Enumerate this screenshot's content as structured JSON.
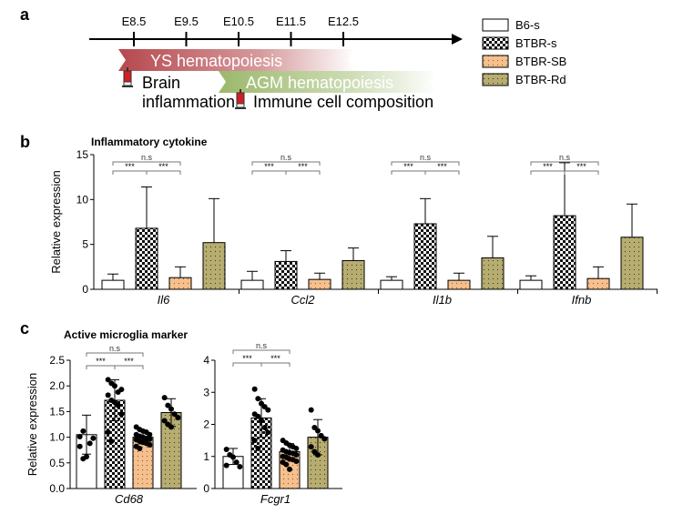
{
  "panels": {
    "a": "a",
    "b": "b",
    "c": "c"
  },
  "timeline": {
    "ticks": [
      "E8.5",
      "E9.5",
      "E10.5",
      "E11.5",
      "E12.5"
    ],
    "ys_label": "YS hematopoiesis",
    "agm_label": "AGM hematopoiesis",
    "brain_label_1": "Brain",
    "brain_label_2": "inflammation",
    "immune_label": "Immune cell composition"
  },
  "legend": [
    {
      "name": "B6-s",
      "pattern": "white"
    },
    {
      "name": "BTBR-s",
      "pattern": "checker"
    },
    {
      "name": "BTBR-SB",
      "pattern": "orange"
    },
    {
      "name": "BTBR-Rd",
      "pattern": "olive"
    }
  ],
  "colors": {
    "ys_band": "#b5484e",
    "agm_band": "#9bb86a",
    "orange": "#f6c08e",
    "olive": "#b7ad70",
    "syringe_red": "#d21f26"
  },
  "chart_data": [
    {
      "type": "bar",
      "title": "Inflammatory cytokine",
      "ylabel": "Relative expression",
      "ylim": [
        0,
        15
      ],
      "yticks": [
        "0",
        "5",
        "10",
        "15"
      ],
      "categories": [
        "Il6",
        "Ccl2",
        "Il1b",
        "Ifnb"
      ],
      "series": [
        {
          "name": "B6-s",
          "values": [
            1.0,
            1.0,
            1.0,
            1.0
          ],
          "errors": [
            0.7,
            1.0,
            0.4,
            0.5
          ]
        },
        {
          "name": "BTBR-s",
          "values": [
            6.8,
            3.1,
            7.3,
            8.2
          ],
          "errors": [
            4.6,
            1.2,
            2.8,
            5.9
          ]
        },
        {
          "name": "BTBR-SB",
          "values": [
            1.3,
            1.1,
            1.0,
            1.2
          ],
          "errors": [
            1.2,
            0.7,
            0.8,
            1.3
          ]
        },
        {
          "name": "BTBR-Rd",
          "values": [
            5.2,
            3.2,
            3.5,
            5.8
          ],
          "errors": [
            4.9,
            1.4,
            2.4,
            3.7
          ]
        }
      ],
      "annotations": [
        {
          "category": "Il6",
          "labels": [
            "***",
            "***",
            "n.s"
          ]
        },
        {
          "category": "Ccl2",
          "labels": [
            "***",
            "***",
            "n.s"
          ]
        },
        {
          "category": "Il1b",
          "labels": [
            "***",
            "***",
            "n.s"
          ]
        },
        {
          "category": "Ifnb",
          "labels": [
            "***",
            "***",
            "n.s"
          ]
        }
      ]
    },
    {
      "type": "bar",
      "title": "Active microglia marker",
      "ylabel": "Relative expression",
      "ylim": [
        0,
        2.5
      ],
      "yticks": [
        "0.0",
        "0.5",
        "1.0",
        "1.5",
        "2.0",
        "2.5"
      ],
      "categories": [
        "Cd68"
      ],
      "series": [
        {
          "name": "B6-s",
          "values": [
            1.05
          ],
          "errors": [
            0.38
          ],
          "points": [
            0.82,
            0.58,
            0.62,
            0.88,
            0.98,
            1.01,
            1.12
          ]
        },
        {
          "name": "BTBR-s",
          "values": [
            1.72
          ],
          "errors": [
            0.4
          ],
          "points": [
            2.12,
            2.05,
            2.0,
            1.88,
            1.93,
            1.82,
            1.72,
            1.68,
            1.62,
            1.45,
            1.1,
            0.92
          ]
        },
        {
          "name": "BTBR-SB",
          "values": [
            1.0
          ],
          "errors": [
            0.13
          ],
          "points": [
            1.2,
            1.15,
            1.12,
            1.1,
            1.05,
            1.05,
            1.02,
            1.0,
            0.98,
            0.96,
            0.95,
            0.92,
            0.9,
            0.88,
            0.85,
            0.82,
            0.78
          ]
        },
        {
          "name": "BTBR-Rd",
          "values": [
            1.48
          ],
          "errors": [
            0.27
          ],
          "points": [
            1.77,
            1.62,
            1.55,
            1.45,
            1.38,
            1.32,
            1.25,
            1.2
          ]
        }
      ],
      "annotations": [
        "***",
        "***",
        "n.s"
      ]
    },
    {
      "type": "bar",
      "ylim": [
        0,
        4
      ],
      "yticks": [
        "0",
        "1",
        "2",
        "3",
        "4"
      ],
      "categories": [
        "Fcgr1"
      ],
      "series": [
        {
          "name": "B6-s",
          "values": [
            1.0
          ],
          "errors": [
            0.25
          ],
          "points": [
            1.22,
            1.05,
            0.98,
            0.82,
            0.68,
            0.72
          ]
        },
        {
          "name": "BTBR-s",
          "values": [
            2.2
          ],
          "errors": [
            0.6
          ],
          "points": [
            3.1,
            2.8,
            2.65,
            2.55,
            2.45,
            2.32,
            2.25,
            2.12,
            1.9,
            1.75,
            1.5,
            1.25
          ]
        },
        {
          "name": "BTBR-SB",
          "values": [
            1.15
          ],
          "errors": [
            0.25
          ],
          "points": [
            1.5,
            1.42,
            1.35,
            1.3,
            1.25,
            1.2,
            1.15,
            1.12,
            1.1,
            1.05,
            1.0,
            0.98,
            0.92,
            0.9,
            0.85,
            0.82,
            0.75,
            0.6
          ]
        },
        {
          "name": "BTBR-Rd",
          "values": [
            1.6
          ],
          "errors": [
            0.55
          ],
          "points": [
            2.45,
            1.9,
            1.8,
            1.65,
            1.55,
            1.3,
            1.15,
            1.05
          ]
        }
      ],
      "annotations": [
        "***",
        "***",
        "n.s"
      ]
    }
  ]
}
